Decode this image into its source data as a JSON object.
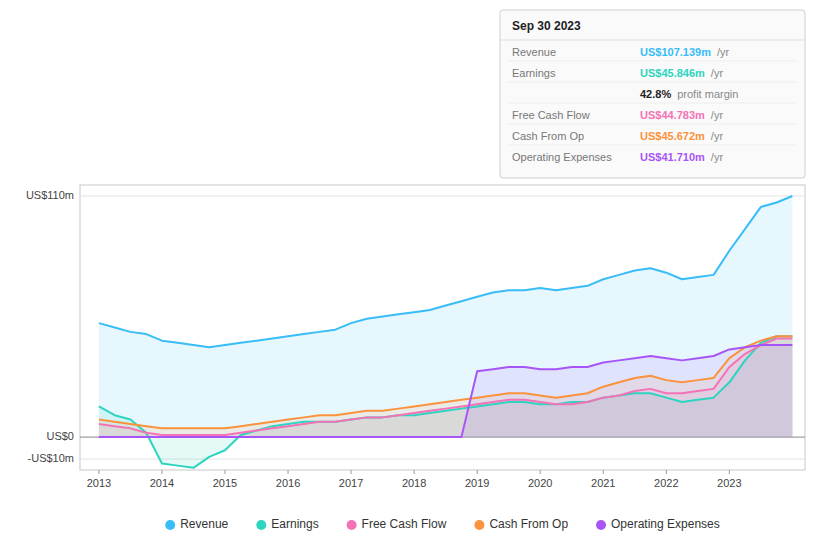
{
  "chart_data": {
    "type": "area",
    "x": [
      2013,
      2013.25,
      2013.5,
      2013.75,
      2014,
      2014.25,
      2014.5,
      2014.75,
      2015,
      2015.25,
      2015.5,
      2015.75,
      2016,
      2016.25,
      2016.5,
      2016.75,
      2017,
      2017.25,
      2017.5,
      2017.75,
      2018,
      2018.25,
      2018.5,
      2018.75,
      2019,
      2019.25,
      2019.5,
      2019.75,
      2020,
      2020.25,
      2020.5,
      2020.75,
      2021,
      2021.25,
      2021.5,
      2021.75,
      2022,
      2022.25,
      2022.5,
      2022.75,
      2023,
      2023.25,
      2023.5,
      2023.75,
      2024
    ],
    "series": [
      {
        "name": "Revenue",
        "color": "#38bdf8",
        "values": [
          52,
          50,
          48,
          47,
          44,
          43,
          42,
          41,
          42,
          43,
          44,
          45,
          46,
          47,
          48,
          49,
          52,
          54,
          55,
          56,
          57,
          58,
          60,
          62,
          64,
          66,
          67,
          67,
          68,
          67,
          68,
          69,
          72,
          74,
          76,
          77,
          75,
          72,
          73,
          74,
          85,
          95,
          105,
          107,
          110
        ]
      },
      {
        "name": "Earnings",
        "color": "#2dd4bf",
        "values": [
          14,
          10,
          8,
          2,
          -12,
          -13,
          -14,
          -9,
          -6,
          1,
          3,
          5,
          6,
          7,
          7,
          7,
          8,
          9,
          9,
          10,
          10,
          11,
          12,
          13,
          14,
          15,
          16,
          16,
          15,
          15,
          16,
          16,
          18,
          19,
          20,
          20,
          18,
          16,
          17,
          18,
          25,
          35,
          43,
          46,
          46
        ]
      },
      {
        "name": "Free Cash Flow",
        "color": "#f472b6",
        "values": [
          6,
          5,
          4,
          2,
          1,
          1,
          1,
          1,
          1,
          2,
          3,
          4,
          5,
          6,
          7,
          7,
          8,
          9,
          9,
          10,
          11,
          12,
          13,
          14,
          15,
          16,
          17,
          17,
          16,
          15,
          15,
          16,
          18,
          19,
          21,
          22,
          20,
          20,
          21,
          22,
          32,
          38,
          42,
          45,
          45
        ]
      },
      {
        "name": "Cash From Op",
        "color": "#fb923c",
        "values": [
          8,
          7,
          6,
          5,
          4,
          4,
          4,
          4,
          4,
          5,
          6,
          7,
          8,
          9,
          10,
          10,
          11,
          12,
          12,
          13,
          14,
          15,
          16,
          17,
          18,
          19,
          20,
          20,
          19,
          18,
          19,
          20,
          23,
          25,
          27,
          28,
          26,
          25,
          26,
          27,
          36,
          41,
          44,
          46,
          46
        ]
      },
      {
        "name": "Operating Expenses",
        "color": "#a855f7",
        "values": [
          0,
          0,
          0,
          0,
          0,
          0,
          0,
          0,
          0,
          0,
          0,
          0,
          0,
          0,
          0,
          0,
          0,
          0,
          0,
          0,
          0,
          0,
          0,
          0,
          30,
          31,
          32,
          32,
          31,
          31,
          32,
          32,
          34,
          35,
          36,
          37,
          36,
          35,
          36,
          37,
          40,
          41,
          42,
          42,
          42
        ]
      }
    ],
    "xlim": [
      2012.7,
      2024.2
    ],
    "xticks": [
      2013,
      2014,
      2015,
      2016,
      2017,
      2018,
      2019,
      2020,
      2021,
      2022,
      2023
    ],
    "ylim": [
      -15,
      115
    ],
    "yticks": [
      {
        "value": -10,
        "label": "-US$10m"
      },
      {
        "value": 0,
        "label": "US$0"
      },
      {
        "value": 110,
        "label": "US$110m"
      }
    ],
    "grid": true,
    "legend": "bottom",
    "annotations": {
      "date": "Sep 30 2023",
      "rows": [
        {
          "label": "Revenue",
          "value": "US$107.139m",
          "color": "#38bdf8",
          "suffix": "/yr"
        },
        {
          "label": "Earnings",
          "value": "US$45.846m",
          "color": "#2dd4bf",
          "suffix": "/yr"
        },
        {
          "value": "42.8%",
          "suffix": "profit margin"
        },
        {
          "label": "Free Cash Flow",
          "value": "US$44.783m",
          "color": "#f472b6",
          "suffix": "/yr"
        },
        {
          "label": "Cash From Op",
          "value": "US$45.672m",
          "color": "#fb923c",
          "suffix": "/yr"
        },
        {
          "label": "Operating Expenses",
          "value": "US$41.710m",
          "color": "#a855f7",
          "suffix": "/yr"
        }
      ]
    }
  }
}
